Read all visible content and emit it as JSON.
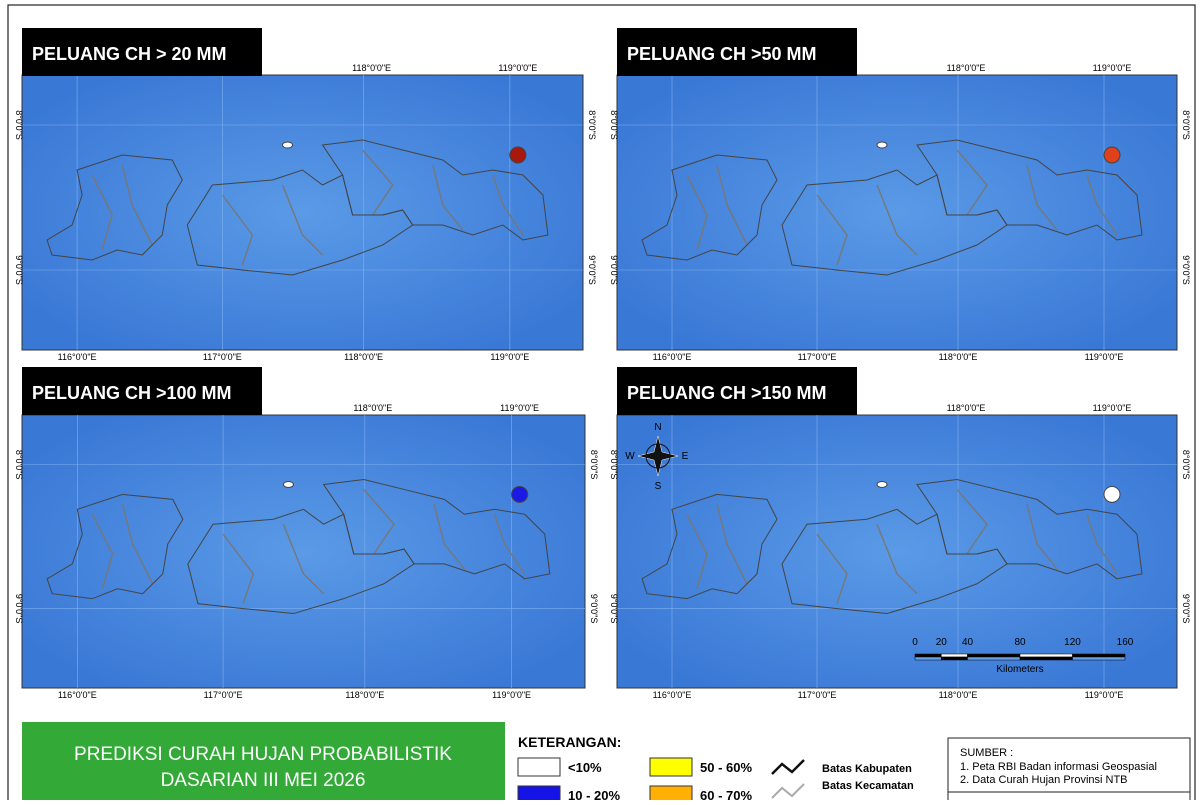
{
  "panels": [
    {
      "title": "PELUANG CH > 20 MM"
    },
    {
      "title": "PELUANG CH >50 MM"
    },
    {
      "title": "PELUANG CH >100 MM"
    },
    {
      "title": "PELUANG CH >150 MM"
    }
  ],
  "lon_labels": [
    "116°0'0\"E",
    "117°0'0\"E",
    "118°0'0\"E",
    "119°0'0\"E"
  ],
  "lat_labels": [
    "8°0'0\"S",
    "9°0'0\"S"
  ],
  "compass": {
    "n": "N",
    "e": "E",
    "s": "S",
    "w": "W"
  },
  "scale_bar": {
    "ticks": [
      0,
      20,
      40,
      80,
      120,
      160
    ],
    "unit": "Kilometers"
  },
  "header": {
    "line1": "PREDIKSI CURAH HUJAN PROBABILISTIK",
    "line2": "DASARIAN  III MEI 2026"
  },
  "legend": {
    "title": "KETERANGAN:",
    "classes": [
      {
        "label": "<10%",
        "color": "#ffffff"
      },
      {
        "label": "10 - 20%",
        "color": "#1414e6"
      },
      {
        "label": "50 - 60%",
        "color": "#ffff00"
      },
      {
        "label": "60 - 70%",
        "color": "#ffb000"
      }
    ],
    "lines": [
      "Batas Kabupaten",
      "Batas Kecamatan"
    ]
  },
  "source": {
    "title": "SUMBER :",
    "items": [
      "1. Peta RBI Badan informasi Geospasial",
      "2. Data Curah Hujan Provinsi NTB"
    ]
  }
}
